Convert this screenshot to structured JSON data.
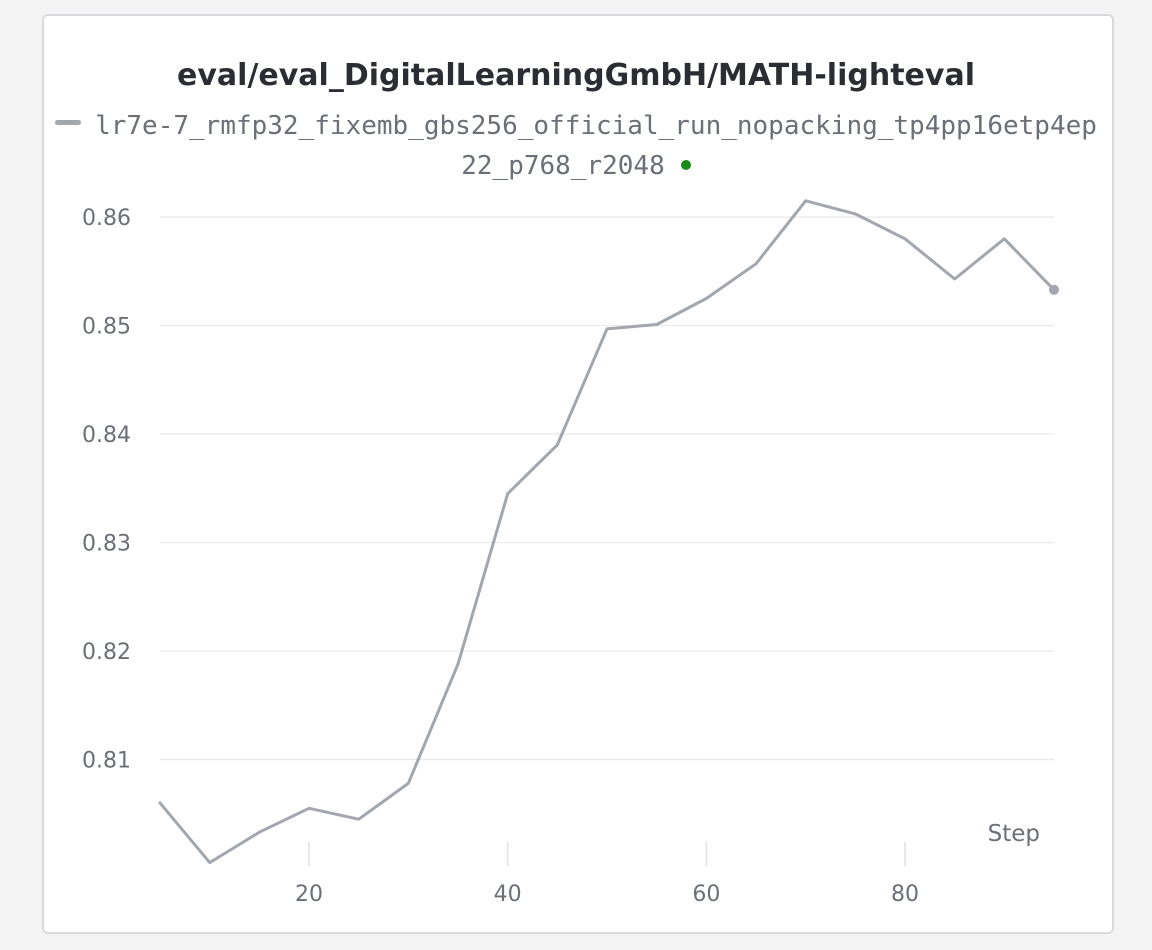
{
  "chart_data": {
    "type": "line",
    "title": "eval/eval_DigitalLearningGmbH/MATH-lighteval",
    "xlabel": "Step",
    "ylabel": "",
    "xlim": [
      5,
      95
    ],
    "ylim": [
      0.8,
      0.8625
    ],
    "x_ticks": [
      20,
      40,
      60,
      80
    ],
    "y_ticks": [
      0.81,
      0.82,
      0.83,
      0.84,
      0.85,
      0.86
    ],
    "grid": true,
    "legend_position": "top",
    "series": [
      {
        "name": "lr7e-7_rmfp32_fixemb_gbs256_official_run_nopacking_tp4pp16etp4ep22_p768_r2048",
        "color": "#a2a7ad",
        "status_color": "#1a8a1a",
        "x": [
          5,
          10,
          15,
          20,
          25,
          30,
          35,
          40,
          45,
          50,
          55,
          60,
          65,
          70,
          75,
          80,
          85,
          90,
          95
        ],
        "y": [
          0.806,
          0.8005,
          0.8033,
          0.8055,
          0.8045,
          0.8078,
          0.8188,
          0.8345,
          0.839,
          0.8497,
          0.8501,
          0.8525,
          0.8557,
          0.8615,
          0.8603,
          0.858,
          0.8543,
          0.858,
          0.8533
        ]
      }
    ]
  }
}
